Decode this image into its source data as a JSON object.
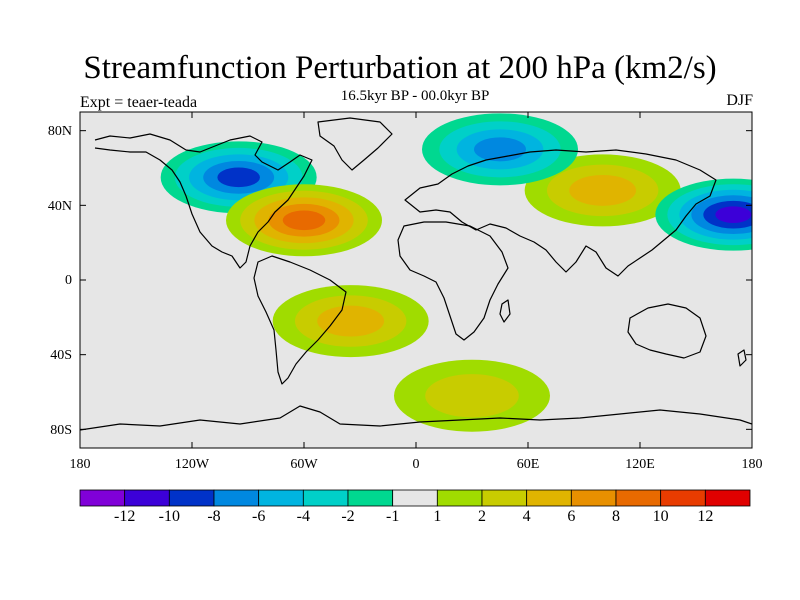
{
  "title": "Streamfunction Perturbation at 200 hPa (km2/s)",
  "subtitle": "16.5kyr BP - 00.0kyr BP",
  "left_label": "Expt = teaer-teada",
  "right_label": "DJF",
  "map": {
    "projection": "cylindrical equidistant",
    "lon_range": [
      -180,
      180
    ],
    "lat_range": [
      -90,
      90
    ],
    "lat_ticks": [
      "80N",
      "40N",
      "0",
      "40S",
      "80S"
    ],
    "lon_ticks": [
      "180",
      "120W",
      "60W",
      "0",
      "60E",
      "120E",
      "180"
    ],
    "features": [
      {
        "name": "north-america-trough",
        "lon": -95,
        "lat": 55,
        "level": -8
      },
      {
        "name": "north-atlantic-ridge",
        "lon": -60,
        "lat": 32,
        "level": 10
      },
      {
        "name": "eurasia-ridge",
        "lon": 100,
        "lat": 48,
        "level": 6
      },
      {
        "name": "siberian-trough",
        "lon": 45,
        "lat": 70,
        "level": -6
      },
      {
        "name": "north-pacific-trough",
        "lon": 170,
        "lat": 35,
        "level": -10
      },
      {
        "name": "south-atlantic-high",
        "lon": -35,
        "lat": -22,
        "level": 6
      },
      {
        "name": "antarctic-ring",
        "lon": 30,
        "lat": -62,
        "level": 4
      }
    ]
  },
  "colorbar": {
    "colors": [
      "#8000d8",
      "#3c00d8",
      "#0032c8",
      "#0088e0",
      "#00b4e0",
      "#00d0c8",
      "#00d890",
      "#e6e6e6",
      "#a0dc00",
      "#c8cc00",
      "#e0b400",
      "#e89000",
      "#e86a00",
      "#e83c00",
      "#e00000"
    ],
    "labels": [
      "-12",
      "-10",
      "-8",
      "-6",
      "-4",
      "-2",
      "-1",
      "1",
      "2",
      "4",
      "6",
      "8",
      "10",
      "12"
    ]
  }
}
